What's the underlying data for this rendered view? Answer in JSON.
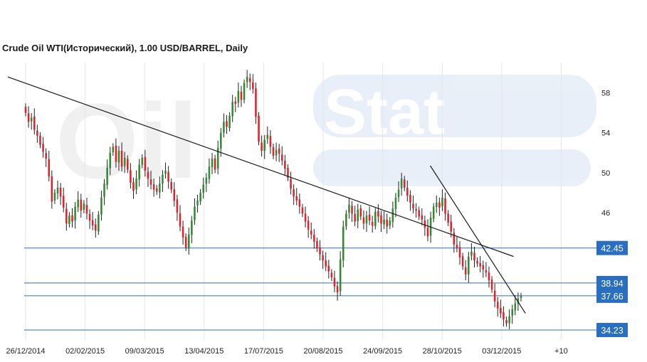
{
  "chart_data": {
    "type": "candlestick",
    "title": "Crude Oil WTI(Исторический), 1.00 USD/BARREL, Daily",
    "watermark": "Oil Stat",
    "y_axis": {
      "ticks": [
        "58",
        "54",
        "50",
        "46"
      ],
      "position": "right"
    },
    "x_axis": {
      "ticks": [
        "26/12/2014",
        "02/02/2015",
        "09/03/2015",
        "13/04/2015",
        "17/07/2015",
        "20/08/2015",
        "24/09/2015",
        "28/10/2015",
        "03/12/2015",
        "+10"
      ]
    },
    "ylim": [
      33.5,
      60.5
    ],
    "grid": "vertical",
    "levels": [
      {
        "label": "42.45",
        "value": 42.45
      },
      {
        "label": "38.94",
        "value": 38.94
      },
      {
        "label": "37.66",
        "value": 37.66
      },
      {
        "label": "34.23",
        "value": 34.23
      }
    ],
    "trendlines": [
      {
        "from": [
          -0.3,
          59.6
        ],
        "to": [
          8.2,
          41.6
        ]
      },
      {
        "from": [
          6.8,
          50.7
        ],
        "to": [
          8.4,
          35.9
        ]
      }
    ],
    "colors": {
      "up": "#2e8b2e",
      "down": "#e0202a",
      "level": "#2a6fbf",
      "label_bg": "#2a6fbf",
      "label_text": "#ffffff",
      "grid": "#e6e6e6",
      "trendline": "#1a1a1a"
    },
    "closes": [
      56.0,
      55.1,
      55.5,
      54.3,
      53.7,
      52.8,
      52.1,
      51.4,
      49.6,
      47.1,
      48.0,
      48.5,
      47.6,
      46.5,
      44.9,
      45.7,
      45.1,
      46.6,
      47.3,
      46.2,
      46.9,
      45.9,
      45.2,
      44.7,
      44.2,
      45.8,
      47.5,
      48.9,
      50.5,
      52.0,
      52.6,
      51.1,
      52.2,
      50.6,
      51.5,
      50.3,
      49.0,
      48.2,
      49.4,
      50.8,
      51.5,
      50.2,
      49.4,
      48.8,
      48.3,
      48.1,
      48.9,
      49.8,
      50.2,
      49.1,
      48.3,
      47.2,
      46.0,
      44.6,
      43.5,
      42.5,
      43.8,
      45.2,
      46.6,
      47.2,
      48.0,
      48.8,
      49.5,
      50.6,
      51.4,
      50.3,
      52.5,
      54.0,
      55.1,
      54.6,
      55.7,
      57.1,
      56.9,
      58.2,
      57.3,
      59.0,
      59.6,
      59.1,
      58.4,
      55.6,
      53.1,
      52.2,
      53.3,
      53.8,
      52.6,
      51.7,
      52.3,
      51.9,
      51.2,
      50.4,
      49.5,
      48.4,
      47.6,
      47.2,
      46.6,
      45.9,
      45.1,
      44.3,
      43.8,
      43.1,
      42.4,
      41.8,
      41.2,
      40.6,
      40.1,
      39.5,
      38.6,
      38.0,
      41.3,
      44.6,
      45.9,
      46.8,
      45.9,
      45.1,
      46.3,
      45.6,
      44.9,
      45.7,
      45.2,
      44.7,
      46.1,
      45.6,
      44.9,
      45.3,
      44.6,
      45.2,
      46.4,
      47.5,
      48.3,
      49.4,
      48.5,
      47.7,
      47.0,
      46.4,
      46.2,
      45.6,
      45.3,
      44.5,
      43.6,
      45.5,
      46.6,
      47.0,
      46.5,
      47.5,
      45.9,
      45.0,
      44.1,
      42.8,
      42.5,
      41.5,
      40.6,
      39.8,
      41.6,
      42.1,
      41.2,
      40.9,
      40.6,
      40.3,
      40.0,
      39.2,
      38.3,
      37.1,
      36.4,
      35.9,
      35.3,
      34.9,
      35.6,
      36.3,
      36.9,
      37.4,
      37.6
    ]
  }
}
